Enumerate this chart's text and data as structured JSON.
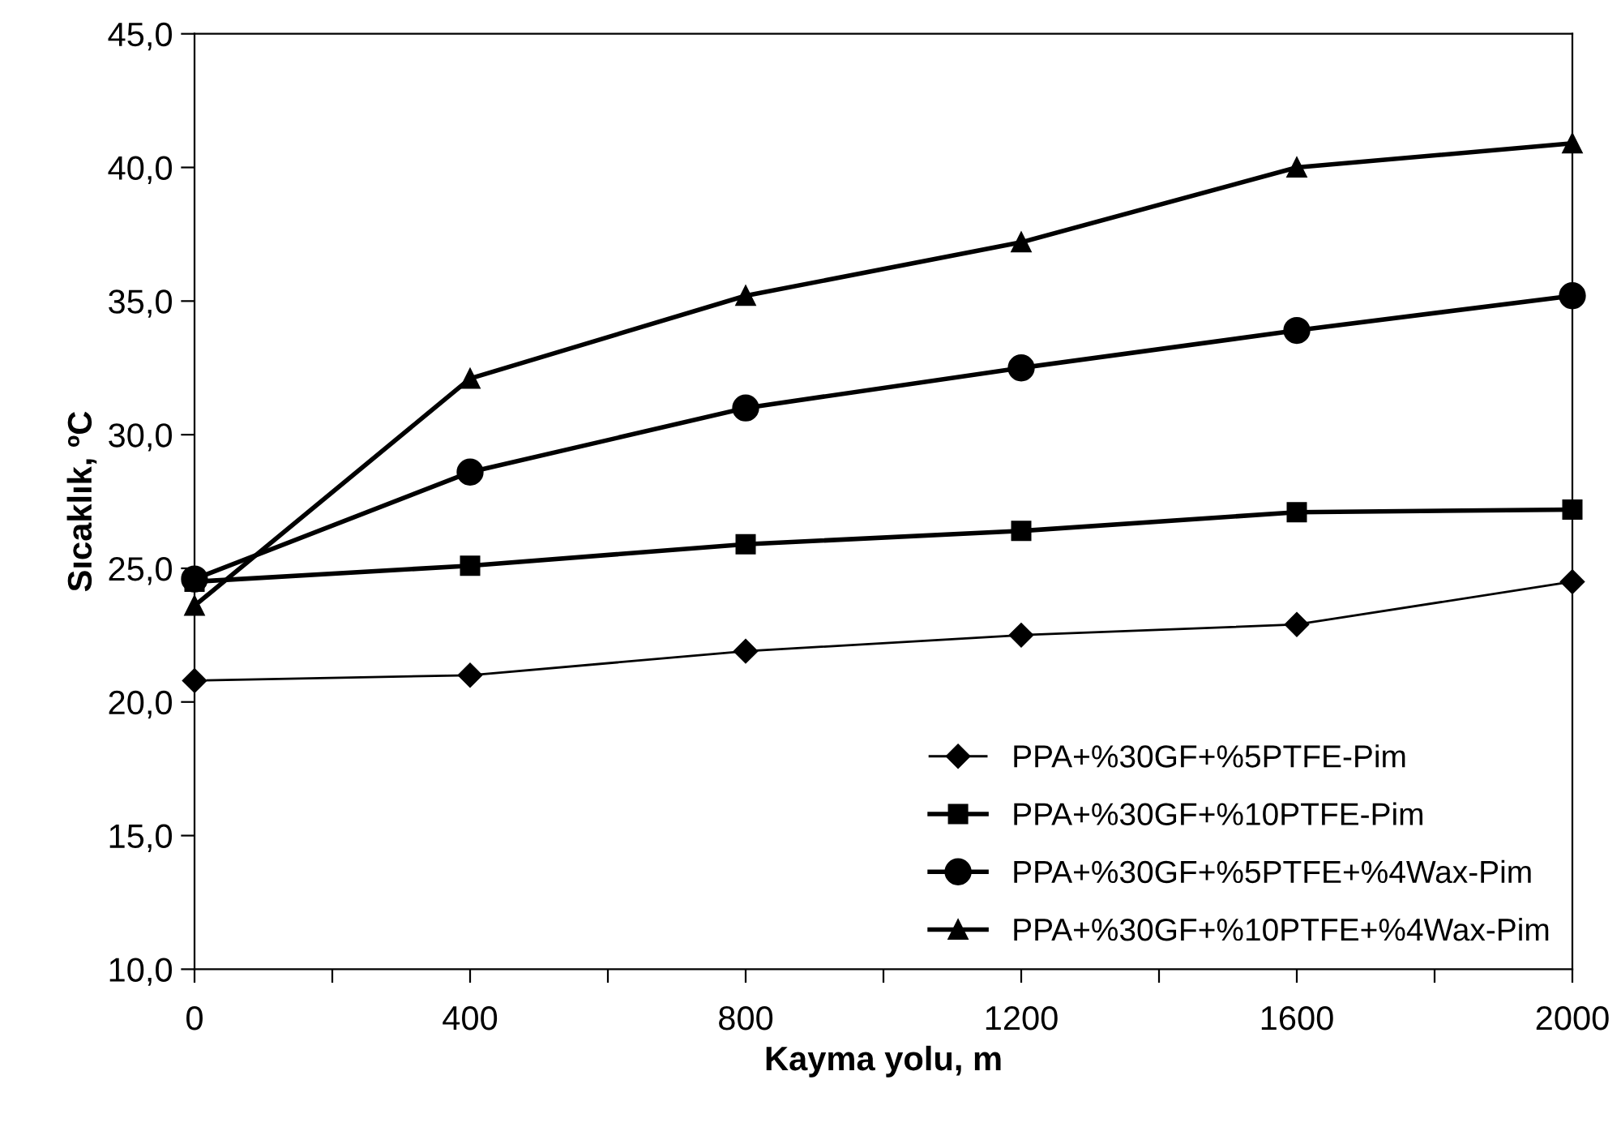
{
  "chart_data": {
    "type": "line",
    "xlabel": "Kayma yolu, m",
    "ylabel": "Sıcaklık, ºC",
    "x": [
      0,
      400,
      800,
      1200,
      1600,
      2000
    ],
    "series": [
      {
        "name": "PPA+%30GF+%5PTFE-Pim",
        "color": "#000000",
        "marker": "diamond",
        "values": [
          20.8,
          21.0,
          21.9,
          22.5,
          22.9,
          24.5
        ]
      },
      {
        "name": "PPA+%30GF+%10PTFE-Pim",
        "color": "#000000",
        "marker": "square",
        "values": [
          24.5,
          25.1,
          25.9,
          26.4,
          27.1,
          27.2
        ]
      },
      {
        "name": "PPA+%30GF+%5PTFE+%4Wax-Pim",
        "color": "#000000",
        "marker": "circle",
        "values": [
          24.6,
          28.6,
          31.0,
          32.5,
          33.9,
          35.2
        ]
      },
      {
        "name": "PPA+%30GF+%10PTFE+%4Wax-Pim",
        "color": "#000000",
        "marker": "triangle",
        "values": [
          23.6,
          32.1,
          35.2,
          37.2,
          40.0,
          40.9
        ]
      }
    ],
    "xlim": [
      0,
      2000
    ],
    "xticks": [
      0,
      {
        "value": 200,
        "label": null
      },
      400,
      {
        "value": 600,
        "label": null
      },
      800,
      {
        "value": 1000,
        "label": null
      },
      1200,
      {
        "value": 1400,
        "label": null
      },
      1600,
      {
        "value": 1800,
        "label": null
      },
      2000
    ],
    "ylim": [
      10,
      45
    ],
    "yticks": [
      {
        "value": 10,
        "label": "10,0"
      },
      {
        "value": 15,
        "label": "15,0"
      },
      {
        "value": 20,
        "label": "20,0"
      },
      {
        "value": 25,
        "label": "25,0"
      },
      {
        "value": 30,
        "label": "30,0"
      },
      {
        "value": 35,
        "label": "35,0"
      },
      {
        "value": 40,
        "label": "40,0"
      },
      {
        "value": 45,
        "label": "45,0"
      }
    ],
    "grid": false,
    "legend": "bottom right",
    "line_style": "solid"
  }
}
